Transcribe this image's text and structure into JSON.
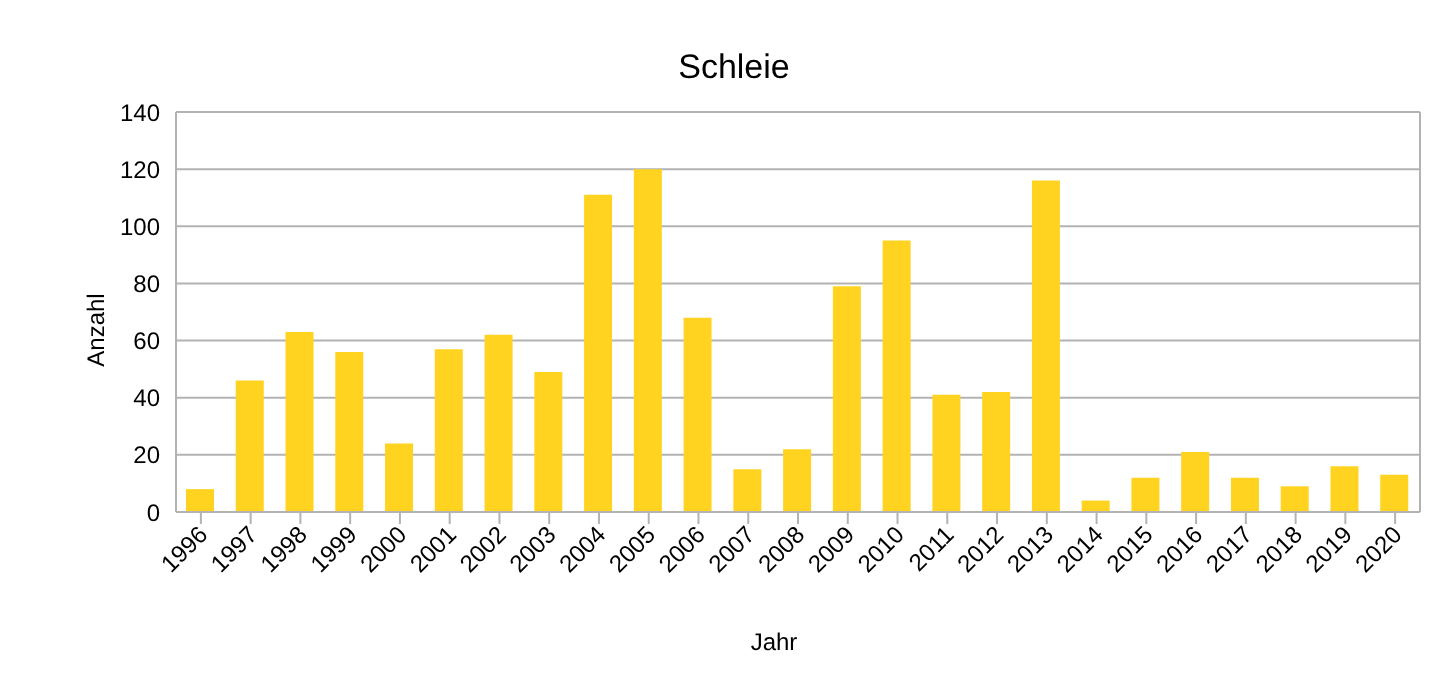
{
  "chart_data": {
    "type": "bar",
    "title": "Schleie",
    "xlabel": "Jahr",
    "ylabel": "Anzahl",
    "categories": [
      "1996",
      "1997",
      "1998",
      "1999",
      "2000",
      "2001",
      "2002",
      "2003",
      "2004",
      "2005",
      "2006",
      "2007",
      "2008",
      "2009",
      "2010",
      "2011",
      "2012",
      "2013",
      "2014",
      "2015",
      "2016",
      "2017",
      "2018",
      "2019",
      "2020"
    ],
    "values": [
      8,
      46,
      63,
      56,
      24,
      57,
      62,
      49,
      111,
      120,
      68,
      15,
      22,
      79,
      95,
      41,
      42,
      116,
      4,
      12,
      21,
      12,
      9,
      16,
      13
    ],
    "color": "#ffd320",
    "ylim": [
      0,
      140
    ],
    "yticks": [
      0,
      20,
      40,
      60,
      80,
      100,
      120,
      140
    ],
    "grid": "y",
    "legend": false
  }
}
